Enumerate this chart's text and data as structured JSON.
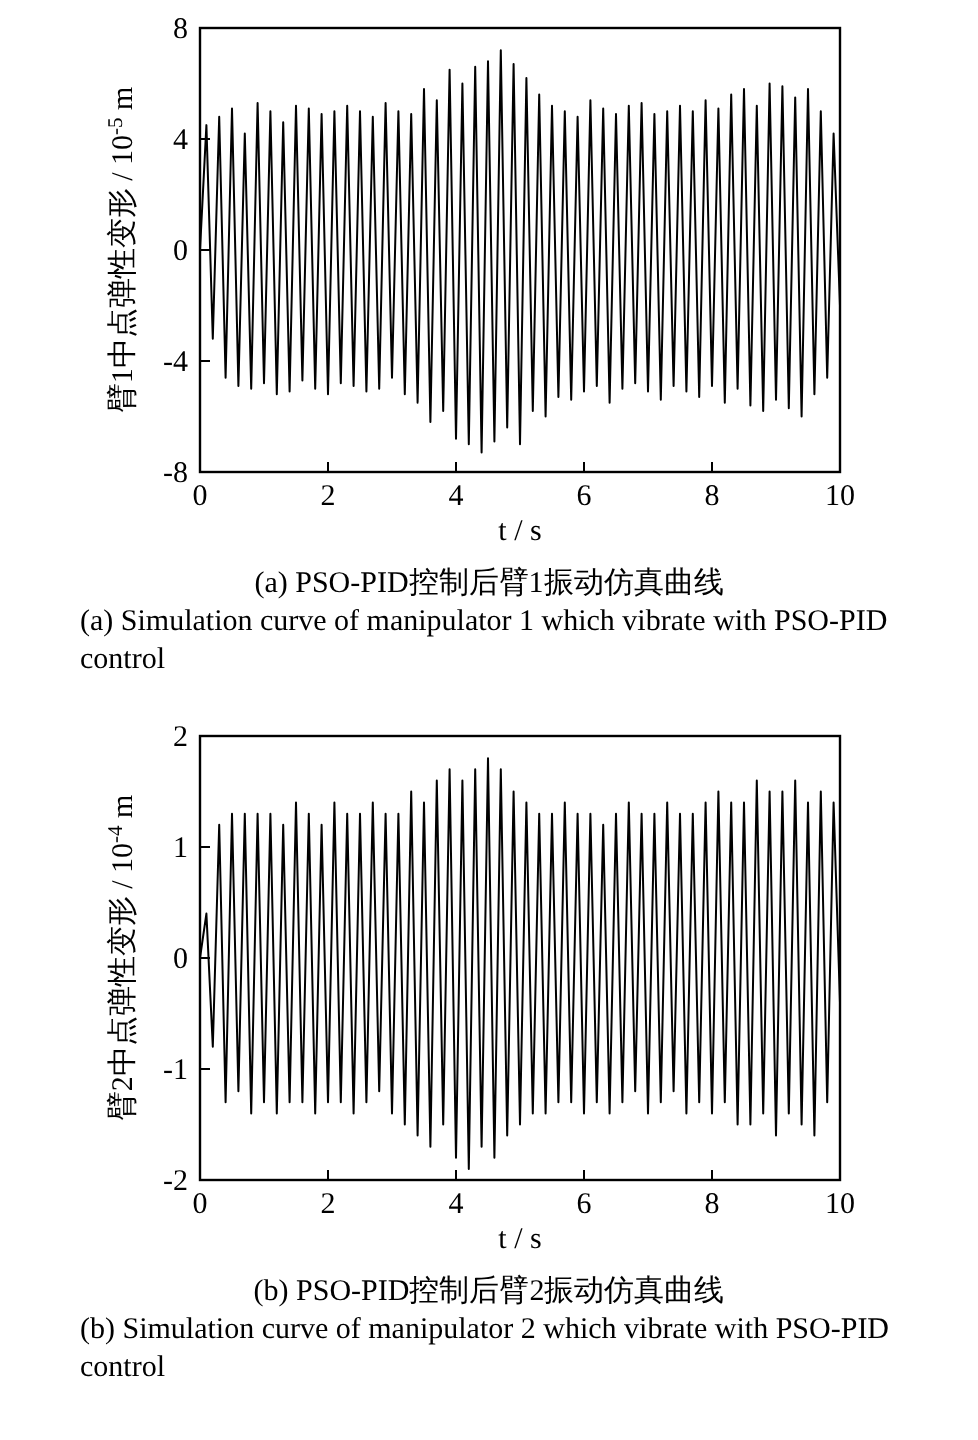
{
  "chart_data": [
    {
      "type": "line",
      "xlabel": "t / s",
      "ylabel": "臂1中点弹性变形 / 10$^{-5}$ m",
      "xlim": [
        0,
        10
      ],
      "xticks": [
        0,
        2,
        4,
        6,
        8,
        10
      ],
      "ylim": [
        -8,
        8
      ],
      "yticks": [
        -8,
        -4,
        0,
        4,
        8
      ],
      "x": [
        0,
        0.1,
        0.2,
        0.3,
        0.4,
        0.5,
        0.6,
        0.7,
        0.8,
        0.9,
        1,
        1.1,
        1.2,
        1.3,
        1.4,
        1.5,
        1.6,
        1.7,
        1.8,
        1.9,
        2,
        2.1,
        2.2,
        2.3,
        2.4,
        2.5,
        2.6,
        2.7,
        2.8,
        2.9,
        3,
        3.1,
        3.2,
        3.3,
        3.4,
        3.5,
        3.6,
        3.7,
        3.8,
        3.9,
        4,
        4.1,
        4.2,
        4.3,
        4.4,
        4.5,
        4.6,
        4.7,
        4.8,
        4.9,
        5,
        5.1,
        5.2,
        5.3,
        5.4,
        5.5,
        5.6,
        5.7,
        5.8,
        5.9,
        6,
        6.1,
        6.2,
        6.3,
        6.4,
        6.5,
        6.6,
        6.7,
        6.8,
        6.9,
        7,
        7.1,
        7.2,
        7.3,
        7.4,
        7.5,
        7.6,
        7.7,
        7.8,
        7.9,
        8,
        8.1,
        8.2,
        8.3,
        8.4,
        8.5,
        8.6,
        8.7,
        8.8,
        8.9,
        9,
        9.1,
        9.2,
        9.3,
        9.4,
        9.5,
        9.6,
        9.7,
        9.8,
        9.9,
        10
      ],
      "series": [
        {
          "color": "#000000",
          "values": [
            0,
            4.5,
            -3.2,
            4.8,
            -4.6,
            5.1,
            -4.9,
            4.2,
            -5.0,
            5.3,
            -4.8,
            5.0,
            -5.2,
            4.6,
            -5.1,
            5.2,
            -4.7,
            5.1,
            -5.0,
            4.9,
            -5.2,
            5.0,
            -4.8,
            5.2,
            -4.9,
            5.0,
            -5.1,
            4.8,
            -5.0,
            5.3,
            -4.6,
            5.0,
            -5.2,
            4.9,
            -5.5,
            5.8,
            -6.2,
            5.4,
            -5.8,
            6.5,
            -6.8,
            6.0,
            -7.0,
            6.6,
            -7.3,
            6.8,
            -6.9,
            7.2,
            -6.4,
            6.7,
            -7.0,
            6.2,
            -5.8,
            5.6,
            -6.0,
            5.2,
            -5.3,
            5.0,
            -5.4,
            4.8,
            -5.1,
            5.4,
            -4.9,
            5.1,
            -5.5,
            4.9,
            -5.0,
            5.2,
            -4.8,
            5.3,
            -5.1,
            4.9,
            -5.4,
            5.0,
            -4.9,
            5.2,
            -5.1,
            5.0,
            -5.3,
            5.4,
            -4.9,
            5.1,
            -5.5,
            5.6,
            -5.0,
            5.8,
            -5.6,
            5.2,
            -5.8,
            6.0,
            -5.4,
            5.9,
            -5.7,
            5.5,
            -6.0,
            5.8,
            -5.2,
            5.0,
            -4.6,
            4.2,
            -2.0
          ]
        }
      ],
      "annotations": [
        "(a) PSO-PID控制后臂1振动仿真曲线",
        "(a)  Simulation curve of manipulator 1 which vibrate with PSO-PID control"
      ]
    },
    {
      "type": "line",
      "xlabel": "t / s",
      "ylabel": "臂2中点弹性变形 / 10$^{-4}$ m",
      "xlim": [
        0,
        10
      ],
      "xticks": [
        0,
        2,
        4,
        6,
        8,
        10
      ],
      "ylim": [
        -2,
        2
      ],
      "yticks": [
        -2,
        -1,
        0,
        1,
        2
      ],
      "x": [
        0,
        0.1,
        0.2,
        0.3,
        0.4,
        0.5,
        0.6,
        0.7,
        0.8,
        0.9,
        1,
        1.1,
        1.2,
        1.3,
        1.4,
        1.5,
        1.6,
        1.7,
        1.8,
        1.9,
        2,
        2.1,
        2.2,
        2.3,
        2.4,
        2.5,
        2.6,
        2.7,
        2.8,
        2.9,
        3,
        3.1,
        3.2,
        3.3,
        3.4,
        3.5,
        3.6,
        3.7,
        3.8,
        3.9,
        4,
        4.1,
        4.2,
        4.3,
        4.4,
        4.5,
        4.6,
        4.7,
        4.8,
        4.9,
        5,
        5.1,
        5.2,
        5.3,
        5.4,
        5.5,
        5.6,
        5.7,
        5.8,
        5.9,
        6,
        6.1,
        6.2,
        6.3,
        6.4,
        6.5,
        6.6,
        6.7,
        6.8,
        6.9,
        7,
        7.1,
        7.2,
        7.3,
        7.4,
        7.5,
        7.6,
        7.7,
        7.8,
        7.9,
        8,
        8.1,
        8.2,
        8.3,
        8.4,
        8.5,
        8.6,
        8.7,
        8.8,
        8.9,
        9,
        9.1,
        9.2,
        9.3,
        9.4,
        9.5,
        9.6,
        9.7,
        9.8,
        9.9,
        10
      ],
      "series": [
        {
          "color": "#000000",
          "values": [
            0,
            0.4,
            -0.8,
            1.2,
            -1.3,
            1.3,
            -1.2,
            1.3,
            -1.4,
            1.3,
            -1.3,
            1.3,
            -1.4,
            1.2,
            -1.3,
            1.4,
            -1.3,
            1.3,
            -1.4,
            1.2,
            -1.3,
            1.4,
            -1.3,
            1.3,
            -1.4,
            1.3,
            -1.3,
            1.4,
            -1.2,
            1.3,
            -1.4,
            1.3,
            -1.5,
            1.5,
            -1.6,
            1.4,
            -1.7,
            1.6,
            -1.5,
            1.7,
            -1.8,
            1.6,
            -1.9,
            1.7,
            -1.7,
            1.8,
            -1.8,
            1.7,
            -1.6,
            1.5,
            -1.5,
            1.4,
            -1.4,
            1.3,
            -1.4,
            1.3,
            -1.3,
            1.4,
            -1.3,
            1.3,
            -1.4,
            1.3,
            -1.3,
            1.2,
            -1.4,
            1.3,
            -1.3,
            1.4,
            -1.2,
            1.3,
            -1.4,
            1.3,
            -1.3,
            1.4,
            -1.2,
            1.3,
            -1.4,
            1.3,
            -1.3,
            1.4,
            -1.4,
            1.5,
            -1.3,
            1.4,
            -1.5,
            1.4,
            -1.5,
            1.6,
            -1.4,
            1.5,
            -1.6,
            1.5,
            -1.4,
            1.6,
            -1.5,
            1.4,
            -1.6,
            1.5,
            -1.3,
            1.4,
            -0.4
          ]
        }
      ],
      "annotations": [
        "(b) PSO-PID控制后臂2振动仿真曲线",
        "(b)  Simulation curve of manipulator 2 which vibrate with PSO-PID control"
      ]
    }
  ]
}
